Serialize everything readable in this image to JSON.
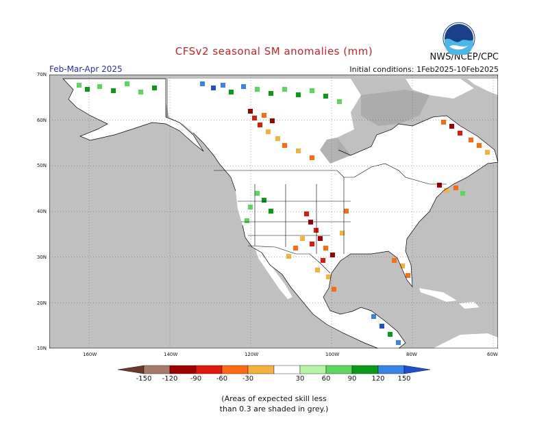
{
  "title": "CFSv2 seasonal SM anomalies (mm)",
  "agency": "NWS/NCEP/CPC",
  "logo_text": "NOAA",
  "period": "Feb-Mar-Apr 2025",
  "initial_conditions": "Initial conditions: 1Feb2025-10Feb2025",
  "lat_labels": [
    "70N",
    "60N",
    "50N",
    "40N",
    "30N",
    "20N",
    "10N"
  ],
  "lon_labels": [
    "160W",
    "140W",
    "120W",
    "100W",
    "80W",
    "60W"
  ],
  "colorbar": {
    "ticks": [
      "-150",
      "-120",
      "-90",
      "-60",
      "-30",
      "30",
      "60",
      "90",
      "120",
      "150"
    ],
    "colors": [
      "#6b3a2a",
      "#a67b6a",
      "#a00000",
      "#e01a0a",
      "#ff6a10",
      "#f6b13a",
      "#ffffff",
      "#b6f5a6",
      "#5cd65c",
      "#0a9a1a",
      "#3a84e6",
      "#1f4fd0"
    ]
  },
  "note_line1": "(Areas of expected skill less",
  "note_line2": "than 0.3 are shaded in grey.)",
  "colors": {
    "ocean": "#c0c0c0",
    "land": "#ffffff",
    "unskilled": "#aaaaaa"
  }
}
